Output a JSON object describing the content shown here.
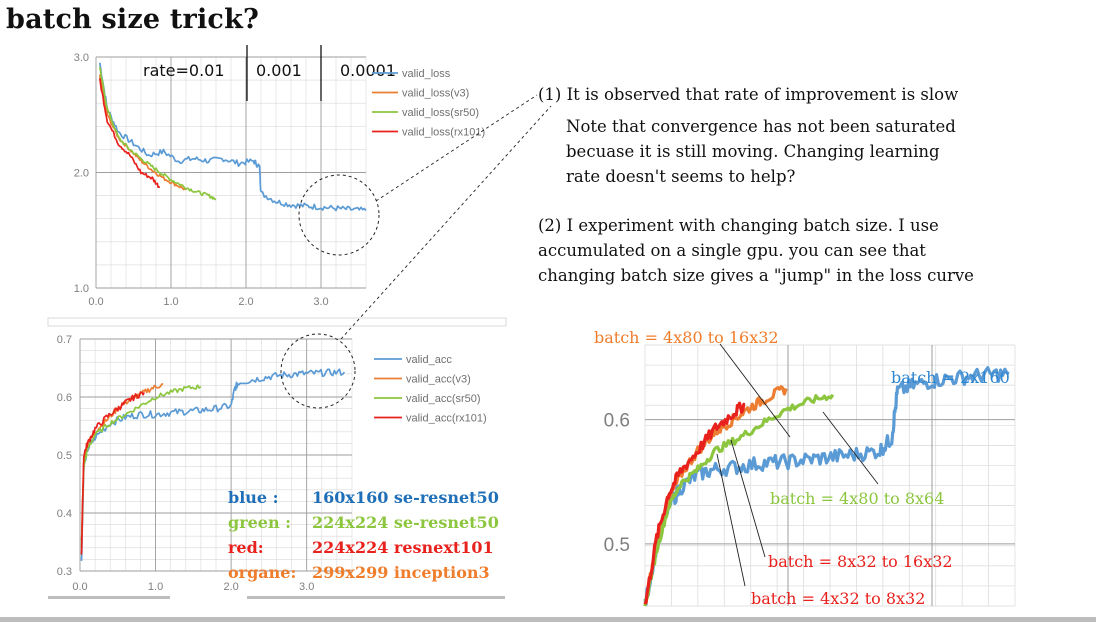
{
  "slide": {
    "title": "batch size trick?"
  },
  "notes": {
    "n1_head": "(1) It is observed that rate of improvement is slow",
    "n1_l1": "Note that convergence has not been saturated",
    "n1_l2": "becuase it is still moving. Changing learning",
    "n1_l3": "rate doesn't seems to help?",
    "n2_l1": "(2) I experiment with changing batch size. I use",
    "n2_l2": "accumulated on a single gpu. you can see that",
    "n2_l3": "changing batch size gives a \"jump\" in the loss curve"
  },
  "legend_box": {
    "rows": [
      {
        "key": "blue :",
        "value": "160x160 se-resnet50",
        "color": "#1f6fb8"
      },
      {
        "key": "green :",
        "value": "224x224 se-resnet50",
        "color": "#8cc63e"
      },
      {
        "key": "red:",
        "value": "224x224 resnext101",
        "color": "#e8211d"
      },
      {
        "key": "organe:",
        "value": "299x299 inception3",
        "color": "#ef7d2b"
      }
    ]
  },
  "colors": {
    "blue": "#5b9bd5",
    "orange": "#ed7d31",
    "green": "#8cc63e",
    "red": "#e8211d",
    "grid": "#d9d9d9",
    "axis_text": "#7f7f7f"
  },
  "chart_data": [
    {
      "type": "line",
      "name": "loss-chart",
      "xlim": [
        0,
        3.6
      ],
      "ylim": [
        1.0,
        3.0
      ],
      "xticks": [
        "0.0",
        "1.0",
        "2.0",
        "3.0"
      ],
      "yticks": [
        "1.0",
        "2.0",
        "3.0"
      ],
      "grid": true,
      "legend": "right",
      "annotations": [
        "rate=0.01",
        "0.001",
        "0.0001"
      ],
      "series": [
        {
          "name": "valid_loss",
          "color": "#5b9bd5",
          "x": [
            0.05,
            0.15,
            0.3,
            0.5,
            0.7,
            0.9,
            1.1,
            1.3,
            1.5,
            1.7,
            1.9,
            2.1,
            2.18,
            2.2,
            2.4,
            2.6,
            2.8,
            3.0,
            3.2,
            3.4,
            3.6
          ],
          "y": [
            2.95,
            2.55,
            2.35,
            2.25,
            2.15,
            2.18,
            2.1,
            2.12,
            2.1,
            2.12,
            2.08,
            2.1,
            2.05,
            1.82,
            1.75,
            1.72,
            1.71,
            1.7,
            1.69,
            1.68,
            1.67
          ]
        },
        {
          "name": "valid_loss(v3)",
          "color": "#ed7d31",
          "x": [
            0.05,
            0.15,
            0.3,
            0.45,
            0.6,
            0.75,
            0.9,
            1.05,
            1.2
          ],
          "y": [
            2.85,
            2.5,
            2.3,
            2.2,
            2.1,
            2.02,
            1.95,
            1.9,
            1.85
          ]
        },
        {
          "name": "valid_loss(sr50)",
          "color": "#8cc63e",
          "x": [
            0.05,
            0.15,
            0.3,
            0.45,
            0.6,
            0.75,
            0.9,
            1.05,
            1.2,
            1.35,
            1.5,
            1.6
          ],
          "y": [
            2.9,
            2.55,
            2.3,
            2.2,
            2.12,
            2.05,
            1.98,
            1.92,
            1.87,
            1.83,
            1.8,
            1.77
          ]
        },
        {
          "name": "valid_loss(rx101)",
          "color": "#e8211d",
          "x": [
            0.05,
            0.15,
            0.3,
            0.45,
            0.6,
            0.75,
            0.85
          ],
          "y": [
            2.8,
            2.45,
            2.25,
            2.15,
            2.0,
            1.95,
            1.87
          ]
        }
      ]
    },
    {
      "type": "line",
      "name": "acc-chart",
      "xlim": [
        0,
        3.6
      ],
      "ylim": [
        0.3,
        0.7
      ],
      "xticks": [
        "0.0",
        "1.0",
        "2.0",
        "3.0"
      ],
      "yticks": [
        "0.3",
        "0.4",
        "0.5",
        "0.6",
        "0.7"
      ],
      "grid": true,
      "legend": "right",
      "series": [
        {
          "name": "valid_acc",
          "color": "#5b9bd5",
          "x": [
            0.02,
            0.05,
            0.1,
            0.2,
            0.4,
            0.6,
            0.8,
            1.0,
            1.2,
            1.4,
            1.6,
            1.8,
            2.0,
            2.05,
            2.1,
            2.3,
            2.5,
            2.7,
            2.9,
            3.1,
            3.3,
            3.5
          ],
          "y": [
            0.32,
            0.48,
            0.51,
            0.53,
            0.555,
            0.565,
            0.57,
            0.57,
            0.573,
            0.575,
            0.577,
            0.58,
            0.585,
            0.615,
            0.625,
            0.63,
            0.635,
            0.638,
            0.64,
            0.641,
            0.642,
            0.643
          ]
        },
        {
          "name": "valid_acc(v3)",
          "color": "#ed7d31",
          "x": [
            0.02,
            0.05,
            0.1,
            0.2,
            0.35,
            0.5,
            0.65,
            0.8,
            0.95,
            1.1
          ],
          "y": [
            0.35,
            0.49,
            0.52,
            0.54,
            0.56,
            0.58,
            0.595,
            0.605,
            0.615,
            0.622
          ]
        },
        {
          "name": "valid_acc(sr50)",
          "color": "#8cc63e",
          "x": [
            0.02,
            0.05,
            0.1,
            0.2,
            0.4,
            0.6,
            0.8,
            1.0,
            1.2,
            1.4,
            1.6
          ],
          "y": [
            0.34,
            0.48,
            0.51,
            0.535,
            0.555,
            0.57,
            0.585,
            0.6,
            0.608,
            0.615,
            0.618
          ]
        },
        {
          "name": "valid_acc(rx101)",
          "color": "#e8211d",
          "x": [
            0.02,
            0.05,
            0.1,
            0.2,
            0.35,
            0.5,
            0.6,
            0.72,
            0.85
          ],
          "y": [
            0.33,
            0.5,
            0.52,
            0.545,
            0.565,
            0.58,
            0.59,
            0.6,
            0.608
          ]
        }
      ]
    },
    {
      "type": "line",
      "name": "zoom-chart",
      "ylim": [
        0.45,
        0.66
      ],
      "yticks": [
        "0.5",
        "0.6"
      ],
      "grid": true,
      "annotations": [
        "batch = 4x80 to 16x32",
        "batch = 2x160",
        "batch = 4x80 to 8x64",
        "batch = 8x32 to 16x32",
        "batch = 4x32 to 8x32"
      ],
      "series": [
        {
          "color": "#5b9bd5",
          "x": [
            0,
            0.1,
            0.2,
            0.3,
            0.45,
            0.6,
            0.8,
            1.0,
            1.2,
            1.4,
            1.6,
            1.8,
            2.0,
            2.1,
            2.15,
            2.3,
            2.5,
            2.7,
            2.9,
            3.1
          ],
          "y": [
            0.45,
            0.5,
            0.53,
            0.545,
            0.556,
            0.56,
            0.562,
            0.565,
            0.566,
            0.568,
            0.57,
            0.572,
            0.575,
            0.585,
            0.623,
            0.628,
            0.632,
            0.634,
            0.636,
            0.637
          ]
        },
        {
          "color": "#ed7d31",
          "x": [
            0,
            0.1,
            0.2,
            0.3,
            0.45,
            0.6,
            0.75,
            0.9,
            1.05,
            1.2
          ],
          "y": [
            0.45,
            0.5,
            0.535,
            0.555,
            0.575,
            0.59,
            0.6,
            0.61,
            0.618,
            0.625
          ]
        },
        {
          "color": "#8cc63e",
          "x": [
            0,
            0.1,
            0.2,
            0.3,
            0.45,
            0.6,
            0.8,
            1.0,
            1.2,
            1.4,
            1.6
          ],
          "y": [
            0.45,
            0.495,
            0.53,
            0.548,
            0.56,
            0.575,
            0.585,
            0.597,
            0.608,
            0.615,
            0.62
          ]
        },
        {
          "color": "#e8211d",
          "x": [
            0,
            0.1,
            0.2,
            0.3,
            0.45,
            0.6,
            0.75,
            0.85
          ],
          "y": [
            0.45,
            0.505,
            0.54,
            0.558,
            0.575,
            0.593,
            0.605,
            0.612
          ]
        }
      ]
    }
  ]
}
